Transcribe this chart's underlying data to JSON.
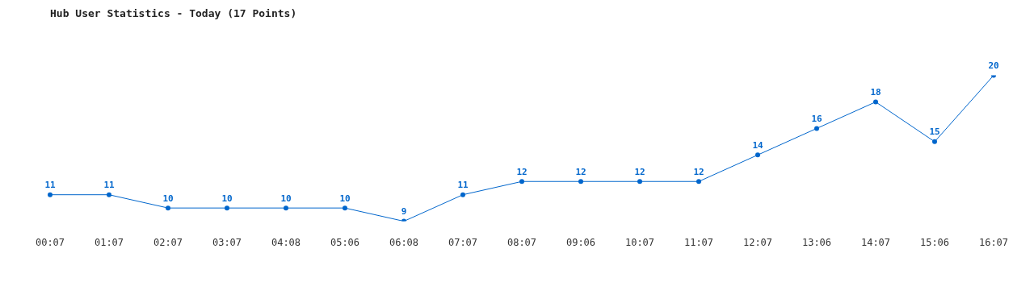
{
  "chart_data": {
    "type": "line",
    "title": "Hub User Statistics - Today (17 Points)",
    "categories": [
      "00:07",
      "01:07",
      "02:07",
      "03:07",
      "04:08",
      "05:06",
      "06:08",
      "07:07",
      "08:07",
      "09:06",
      "10:07",
      "11:07",
      "12:07",
      "13:06",
      "14:07",
      "15:06",
      "16:07"
    ],
    "series": [
      {
        "color": "#0066cc",
        "values": [
          11,
          11,
          10,
          10,
          10,
          10,
          9,
          11,
          12,
          12,
          12,
          12,
          14,
          16,
          18,
          15,
          20
        ]
      }
    ],
    "data_labels": true,
    "grid": false,
    "legend": false,
    "marker": "circle",
    "line_style": "solid"
  }
}
